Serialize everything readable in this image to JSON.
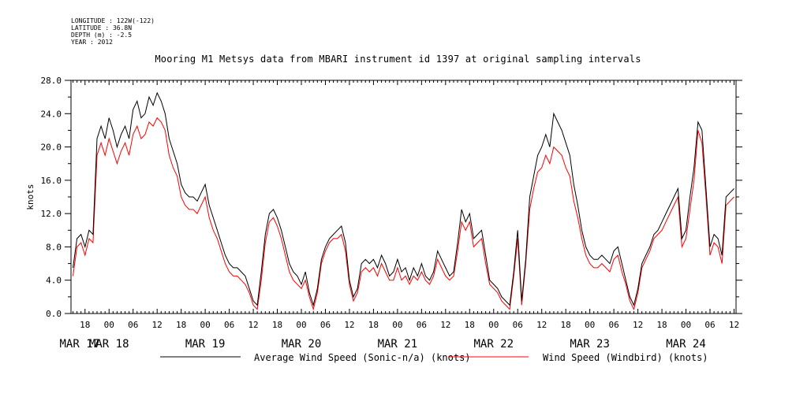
{
  "header": {
    "lines": [
      "LONGITUDE : 122W(-122)",
      "LATITUDE : 36.8N",
      "DEPTH (m) : -2.5",
      "YEAR : 2012"
    ],
    "title": "Mooring M1 Metsys data from MBARI instrument id 1397 at original sampling intervals"
  },
  "chart_data": {
    "type": "line",
    "title": "Mooring M1 Metsys data from MBARI instrument id 1397 at original sampling intervals",
    "ylabel": "knots",
    "xlabel": "",
    "ylim": [
      0,
      28.0
    ],
    "y_ticks": [
      "0.0",
      "4.0",
      "8.0",
      "12.0",
      "16.0",
      "20.0",
      "24.0",
      "28.0"
    ],
    "x_hour_ticks": [
      "18",
      "00",
      "06",
      "12",
      "18",
      "00",
      "06",
      "12",
      "18",
      "00",
      "06",
      "12",
      "18",
      "00",
      "06",
      "12",
      "18",
      "00",
      "06",
      "12",
      "18",
      "00",
      "06",
      "12",
      "18",
      "00",
      "06",
      "12",
      "18",
      "00",
      "06",
      "12"
    ],
    "x_day_labels": [
      "MAR 17",
      "MAR 18",
      "MAR 19",
      "MAR 20",
      "MAR 21",
      "MAR 22",
      "MAR 23",
      "MAR 24"
    ],
    "x_unit": "hours since MAR 17 00:00",
    "xlim": [
      14.5,
      180.5
    ],
    "series": [
      {
        "name": "Average Wind Speed (Sonic-n/a) (knots)",
        "color": "#000000",
        "x": [
          15,
          16,
          17,
          18,
          19,
          20,
          21,
          22,
          23,
          24,
          25,
          26,
          27,
          28,
          29,
          30,
          31,
          32,
          33,
          34,
          35,
          36,
          37,
          38,
          39,
          40,
          41,
          42,
          43,
          44,
          45,
          46,
          47,
          48,
          49,
          50,
          51,
          52,
          53,
          54,
          55,
          56,
          57,
          58,
          59,
          60,
          61,
          62,
          63,
          64,
          65,
          66,
          67,
          68,
          69,
          70,
          71,
          72,
          73,
          74,
          75,
          76,
          77,
          78,
          79,
          80,
          81,
          82,
          83,
          84,
          85,
          86,
          87,
          88,
          89,
          90,
          91,
          92,
          93,
          94,
          95,
          96,
          97,
          98,
          99,
          100,
          101,
          102,
          103,
          104,
          105,
          106,
          107,
          108,
          109,
          110,
          111,
          112,
          113,
          114,
          115,
          116,
          117,
          118,
          119,
          120,
          121,
          122,
          123,
          124,
          125,
          126,
          127,
          128,
          129,
          130,
          131,
          132,
          133,
          134,
          135,
          136,
          137,
          138,
          139,
          140,
          141,
          142,
          143,
          144,
          145,
          146,
          147,
          148,
          149,
          150,
          151,
          152,
          153,
          154,
          155,
          156,
          157,
          158,
          159,
          160,
          161,
          162,
          163,
          164,
          165,
          166,
          167,
          168,
          169,
          170,
          171,
          172,
          173,
          174,
          175,
          176,
          177,
          178,
          179,
          180
        ],
        "values": [
          5.5,
          9.0,
          9.5,
          8.0,
          10.0,
          9.5,
          21.0,
          22.5,
          21.0,
          23.5,
          22.0,
          20.0,
          21.5,
          22.5,
          21.0,
          24.5,
          25.5,
          23.5,
          24.0,
          26.0,
          25.0,
          26.5,
          25.5,
          24.0,
          21.0,
          19.5,
          18.0,
          15.5,
          14.5,
          14.0,
          14.0,
          13.5,
          14.5,
          15.5,
          13.0,
          11.5,
          10.0,
          8.5,
          7.0,
          6.0,
          5.5,
          5.5,
          5.0,
          4.5,
          3.0,
          1.5,
          1.0,
          5.0,
          9.5,
          12.0,
          12.5,
          11.5,
          10.0,
          8.0,
          6.0,
          5.0,
          4.5,
          3.5,
          5.0,
          2.5,
          1.0,
          3.0,
          6.5,
          8.0,
          9.0,
          9.5,
          10.0,
          10.5,
          8.5,
          4.0,
          2.0,
          3.0,
          6.0,
          6.5,
          6.0,
          6.5,
          5.5,
          7.0,
          6.0,
          4.5,
          5.0,
          6.5,
          5.0,
          5.5,
          4.0,
          5.5,
          4.5,
          6.0,
          4.5,
          4.0,
          5.0,
          7.5,
          6.5,
          5.5,
          4.5,
          5.0,
          8.5,
          12.5,
          11.0,
          12.0,
          9.0,
          9.5,
          10.0,
          7.0,
          4.0,
          3.5,
          3.0,
          2.0,
          1.5,
          1.0,
          5.0,
          10.0,
          1.5,
          6.5,
          14.0,
          16.5,
          19.0,
          20.0,
          21.5,
          20.0,
          24.0,
          23.0,
          22.0,
          20.5,
          19.0,
          15.5,
          13.0,
          10.0,
          8.0,
          7.0,
          6.5,
          6.5,
          7.0,
          6.5,
          6.0,
          7.5,
          8.0,
          6.0,
          4.0,
          2.0,
          1.0,
          3.0,
          6.0,
          7.0,
          8.0,
          9.5,
          10.0,
          11.0,
          12.0,
          13.0,
          14.0,
          15.0,
          9.0,
          10.0,
          14.0,
          17.5,
          23.0,
          22.0,
          15.0,
          8.0,
          9.5,
          9.0,
          7.0,
          14.0,
          14.5,
          15.0
        ]
      },
      {
        "name": "Wind Speed (Windbird) (knots)",
        "color": "#ff0000",
        "x": [
          15,
          16,
          17,
          18,
          19,
          20,
          21,
          22,
          23,
          24,
          25,
          26,
          27,
          28,
          29,
          30,
          31,
          32,
          33,
          34,
          35,
          36,
          37,
          38,
          39,
          40,
          41,
          42,
          43,
          44,
          45,
          46,
          47,
          48,
          49,
          50,
          51,
          52,
          53,
          54,
          55,
          56,
          57,
          58,
          59,
          60,
          61,
          62,
          63,
          64,
          65,
          66,
          67,
          68,
          69,
          70,
          71,
          72,
          73,
          74,
          75,
          76,
          77,
          78,
          79,
          80,
          81,
          82,
          83,
          84,
          85,
          86,
          87,
          88,
          89,
          90,
          91,
          92,
          93,
          94,
          95,
          96,
          97,
          98,
          99,
          100,
          101,
          102,
          103,
          104,
          105,
          106,
          107,
          108,
          109,
          110,
          111,
          112,
          113,
          114,
          115,
          116,
          117,
          118,
          119,
          120,
          121,
          122,
          123,
          124,
          125,
          126,
          127,
          128,
          129,
          130,
          131,
          132,
          133,
          134,
          135,
          136,
          137,
          138,
          139,
          140,
          141,
          142,
          143,
          144,
          145,
          146,
          147,
          148,
          149,
          150,
          151,
          152,
          153,
          154,
          155,
          156,
          157,
          158,
          159,
          160,
          161,
          162,
          163,
          164,
          165,
          166,
          167,
          168,
          169,
          170,
          171,
          172,
          173,
          174,
          175,
          176,
          177,
          178,
          179,
          180
        ],
        "values": [
          4.5,
          8.0,
          8.5,
          7.0,
          9.0,
          8.5,
          19.0,
          20.5,
          19.0,
          21.0,
          19.5,
          18.0,
          19.5,
          20.5,
          19.0,
          21.5,
          22.5,
          21.0,
          21.5,
          23.0,
          22.5,
          23.5,
          23.0,
          22.0,
          19.0,
          17.5,
          16.5,
          14.0,
          13.0,
          12.5,
          12.5,
          12.0,
          13.0,
          14.0,
          11.5,
          10.0,
          9.0,
          7.5,
          6.0,
          5.0,
          4.5,
          4.5,
          4.0,
          3.5,
          2.5,
          1.0,
          0.5,
          4.0,
          8.5,
          11.0,
          11.5,
          10.5,
          9.0,
          7.0,
          5.0,
          4.0,
          3.5,
          3.0,
          4.0,
          2.0,
          0.5,
          2.5,
          6.0,
          7.5,
          8.5,
          9.0,
          9.0,
          9.5,
          7.5,
          3.5,
          1.5,
          2.5,
          5.0,
          5.5,
          5.0,
          5.5,
          4.5,
          6.0,
          5.0,
          4.0,
          4.0,
          5.5,
          4.0,
          4.5,
          3.5,
          4.5,
          4.0,
          5.0,
          4.0,
          3.5,
          4.5,
          6.5,
          5.5,
          4.5,
          4.0,
          4.5,
          7.5,
          11.0,
          10.0,
          11.0,
          8.0,
          8.5,
          9.0,
          6.0,
          3.5,
          3.0,
          2.5,
          1.5,
          1.0,
          0.5,
          4.5,
          9.0,
          1.0,
          6.0,
          12.5,
          15.0,
          17.0,
          17.5,
          19.0,
          18.0,
          20.0,
          19.5,
          19.0,
          17.5,
          16.5,
          13.5,
          11.5,
          9.0,
          7.0,
          6.0,
          5.5,
          5.5,
          6.0,
          5.5,
          5.0,
          6.5,
          7.0,
          5.0,
          3.5,
          1.5,
          0.5,
          2.5,
          5.5,
          6.5,
          7.5,
          9.0,
          9.5,
          10.0,
          11.0,
          12.0,
          13.0,
          14.0,
          8.0,
          9.0,
          12.5,
          16.0,
          22.0,
          20.5,
          14.0,
          7.0,
          8.5,
          8.0,
          6.0,
          13.0,
          13.5,
          14.0
        ]
      }
    ]
  }
}
